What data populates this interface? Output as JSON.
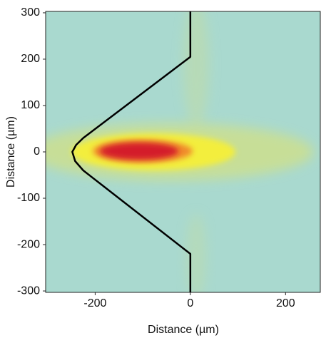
{
  "chart_data": {
    "type": "heatmap",
    "xlabel": "Distance (µm)",
    "ylabel": "Distance (µm)",
    "xlim": [
      -304,
      273
    ],
    "ylim": [
      -303,
      303
    ],
    "xticks": [
      -200,
      0,
      200
    ],
    "yticks": [
      300,
      200,
      100,
      0,
      -100,
      -200,
      -300
    ],
    "outline": {
      "color": "#000000",
      "x": [
        0,
        0,
        -225,
        -240,
        -248,
        -242,
        -225,
        0,
        0
      ],
      "y": [
        303,
        205,
        30,
        15,
        0,
        -20,
        -40,
        -220,
        -303
      ]
    }
  }
}
